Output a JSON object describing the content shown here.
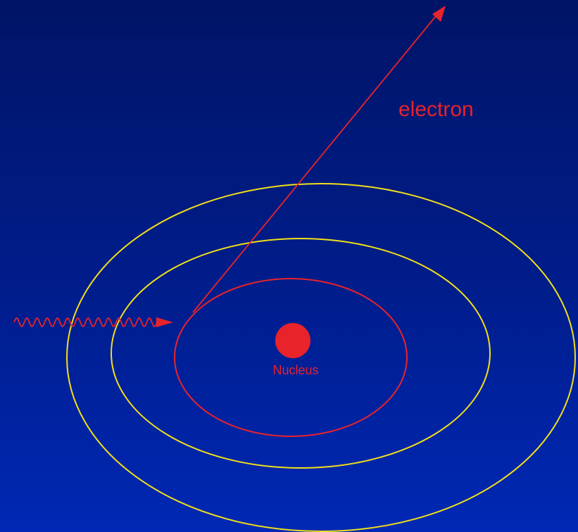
{
  "diagram": {
    "labels": {
      "electron": "electron",
      "nucleus": "Nucleus"
    },
    "colors": {
      "outer_shell": "#f2e018",
      "middle_shell": "#f2e018",
      "inner_shell": "#e8232a",
      "nucleus": "#e8232a",
      "photon": "#e8232a",
      "electron_path": "#e8232a",
      "label": "#e8232a"
    }
  }
}
